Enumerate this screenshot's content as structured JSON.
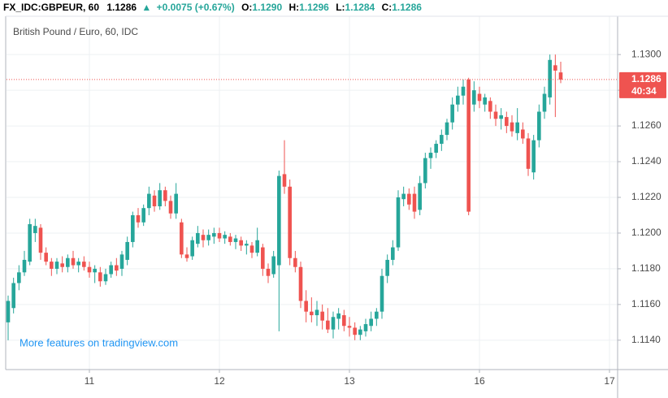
{
  "header": {
    "symbol": "FX_IDC:GBPEUR, 60",
    "price": "1.1286",
    "arrow": "▲",
    "change": "+0.0075 (+0.67%)",
    "ohlc": [
      {
        "label": "O:",
        "value": "1.1290"
      },
      {
        "label": "H:",
        "value": "1.1296"
      },
      {
        "label": "L:",
        "value": "1.1284"
      },
      {
        "label": "C:",
        "value": "1.1286"
      }
    ]
  },
  "chart_data": {
    "type": "candlestick",
    "title": "British Pound / Euro, 60, IDC",
    "watermark": "More features on tradingview.com",
    "up_color": "#26a69a",
    "down_color": "#ef5350",
    "grid": true,
    "last_price": {
      "value": 1.1286,
      "label": "1.1286"
    },
    "countdown": "40:34",
    "xlim": [
      -0.3,
      112.5
    ],
    "xticks": [
      {
        "value": 15,
        "label": "11"
      },
      {
        "value": 39,
        "label": "12"
      },
      {
        "value": 63,
        "label": "13"
      },
      {
        "value": 87,
        "label": "16"
      },
      {
        "value": 111,
        "label": "17"
      }
    ],
    "ylim": [
      1.1124,
      1.1321
    ],
    "yticks": [
      {
        "value": 1.114,
        "label": "1.1140"
      },
      {
        "value": 1.116,
        "label": "1.1160"
      },
      {
        "value": 1.118,
        "label": "1.1180"
      },
      {
        "value": 1.12,
        "label": "1.1200"
      },
      {
        "value": 1.122,
        "label": "1.1220"
      },
      {
        "value": 1.124,
        "label": "1.1240"
      },
      {
        "value": 1.126,
        "label": "1.1260"
      },
      {
        "value": 1.128,
        "label": "1.1280"
      },
      {
        "value": 1.13,
        "label": "1.1300"
      }
    ],
    "candles": [
      [
        1.115,
        1.1165,
        1.114,
        1.1162
      ],
      [
        1.1158,
        1.1175,
        1.1155,
        1.1172
      ],
      [
        1.1172,
        1.1182,
        1.1168,
        1.1178
      ],
      [
        1.1178,
        1.119,
        1.1176,
        1.1185
      ],
      [
        1.1184,
        1.1208,
        1.1182,
        1.1205
      ],
      [
        1.12,
        1.1208,
        1.1195,
        1.1204
      ],
      [
        1.1203,
        1.1205,
        1.1185,
        1.1189
      ],
      [
        1.1189,
        1.1192,
        1.1182,
        1.1184
      ],
      [
        1.1184,
        1.1186,
        1.1176,
        1.118
      ],
      [
        1.118,
        1.1186,
        1.1177,
        1.1184
      ],
      [
        1.1183,
        1.1187,
        1.1178,
        1.1181
      ],
      [
        1.1181,
        1.1188,
        1.1178,
        1.1186
      ],
      [
        1.1186,
        1.119,
        1.118,
        1.1182
      ],
      [
        1.1182,
        1.1186,
        1.1178,
        1.1184
      ],
      [
        1.1184,
        1.1187,
        1.1179,
        1.1181
      ],
      [
        1.1181,
        1.1184,
        1.1175,
        1.1178
      ],
      [
        1.1178,
        1.1182,
        1.1172,
        1.118
      ],
      [
        1.1178,
        1.1181,
        1.117,
        1.1173
      ],
      [
        1.1173,
        1.118,
        1.1171,
        1.1177
      ],
      [
        1.1177,
        1.1184,
        1.1175,
        1.1182
      ],
      [
        1.1182,
        1.1186,
        1.1176,
        1.1179
      ],
      [
        1.118,
        1.119,
        1.1176,
        1.1188
      ],
      [
        1.1185,
        1.1198,
        1.1182,
        1.1195
      ],
      [
        1.1195,
        1.1212,
        1.1192,
        1.121
      ],
      [
        1.121,
        1.1214,
        1.1203,
        1.1206
      ],
      [
        1.1206,
        1.1216,
        1.1204,
        1.1214
      ],
      [
        1.1214,
        1.1226,
        1.121,
        1.1222
      ],
      [
        1.1221,
        1.1224,
        1.1212,
        1.1215
      ],
      [
        1.1215,
        1.1228,
        1.1213,
        1.1224
      ],
      [
        1.1224,
        1.1226,
        1.1215,
        1.1218
      ],
      [
        1.1218,
        1.1221,
        1.1208,
        1.1211
      ],
      [
        1.1211,
        1.1228,
        1.1208,
        1.1222
      ],
      [
        1.1206,
        1.1208,
        1.1186,
        1.1188
      ],
      [
        1.1188,
        1.1192,
        1.1184,
        1.1186
      ],
      [
        1.1187,
        1.1198,
        1.1185,
        1.1196
      ],
      [
        1.1194,
        1.1204,
        1.1192,
        1.12
      ],
      [
        1.1199,
        1.1202,
        1.1192,
        1.1196
      ],
      [
        1.1196,
        1.1202,
        1.1193,
        1.1199
      ],
      [
        1.1198,
        1.1203,
        1.1194,
        1.12
      ],
      [
        1.12,
        1.1203,
        1.1195,
        1.1197
      ],
      [
        1.1197,
        1.1201,
        1.1194,
        1.1199
      ],
      [
        1.1198,
        1.12,
        1.1193,
        1.1195
      ],
      [
        1.1195,
        1.1199,
        1.1191,
        1.1197
      ],
      [
        1.1196,
        1.1198,
        1.119,
        1.1193
      ],
      [
        1.1193,
        1.1196,
        1.1188,
        1.1194
      ],
      [
        1.1193,
        1.1195,
        1.1186,
        1.1189
      ],
      [
        1.1189,
        1.1203,
        1.1187,
        1.1196
      ],
      [
        1.1192,
        1.1194,
        1.1176,
        1.118
      ],
      [
        1.118,
        1.1183,
        1.1172,
        1.1176
      ],
      [
        1.1177,
        1.119,
        1.1175,
        1.1187
      ],
      [
        1.1182,
        1.1235,
        1.1145,
        1.1232
      ],
      [
        1.1233,
        1.1252,
        1.1222,
        1.1226
      ],
      [
        1.1226,
        1.123,
        1.1182,
        1.1186
      ],
      [
        1.1186,
        1.119,
        1.1178,
        1.1181
      ],
      [
        1.1181,
        1.1184,
        1.1158,
        1.1162
      ],
      [
        1.1162,
        1.1168,
        1.115,
        1.1156
      ],
      [
        1.1156,
        1.1164,
        1.115,
        1.1154
      ],
      [
        1.1154,
        1.1162,
        1.1148,
        1.1157
      ],
      [
        1.1156,
        1.116,
        1.1146,
        1.1151
      ],
      [
        1.1151,
        1.1158,
        1.1144,
        1.1146
      ],
      [
        1.1146,
        1.1156,
        1.1141,
        1.1153
      ],
      [
        1.1152,
        1.1158,
        1.1146,
        1.1155
      ],
      [
        1.1154,
        1.1157,
        1.1145,
        1.1148
      ],
      [
        1.1148,
        1.1153,
        1.1142,
        1.1147
      ],
      [
        1.1147,
        1.115,
        1.114,
        1.1143
      ],
      [
        1.1143,
        1.1148,
        1.114,
        1.1146
      ],
      [
        1.1145,
        1.1152,
        1.1142,
        1.1149
      ],
      [
        1.1148,
        1.1156,
        1.1145,
        1.1152
      ],
      [
        1.1152,
        1.1158,
        1.1148,
        1.1156
      ],
      [
        1.1156,
        1.118,
        1.1152,
        1.1176
      ],
      [
        1.1176,
        1.1188,
        1.1172,
        1.1185
      ],
      [
        1.1185,
        1.1196,
        1.1182,
        1.1192
      ],
      [
        1.1192,
        1.1224,
        1.119,
        1.122
      ],
      [
        1.1219,
        1.1226,
        1.1215,
        1.1222
      ],
      [
        1.1222,
        1.1225,
        1.1213,
        1.1216
      ],
      [
        1.1222,
        1.1226,
        1.1208,
        1.1212
      ],
      [
        1.1213,
        1.1232,
        1.121,
        1.1228
      ],
      [
        1.1228,
        1.1245,
        1.1225,
        1.1242
      ],
      [
        1.1242,
        1.1248,
        1.1236,
        1.1245
      ],
      [
        1.1245,
        1.1252,
        1.1242,
        1.125
      ],
      [
        1.125,
        1.1258,
        1.1246,
        1.1255
      ],
      [
        1.1255,
        1.1264,
        1.1252,
        1.1262
      ],
      [
        1.1262,
        1.1276,
        1.1258,
        1.1272
      ],
      [
        1.1272,
        1.1282,
        1.1268,
        1.1277
      ],
      [
        1.1277,
        1.1286,
        1.1272,
        1.1282
      ],
      [
        1.1286,
        1.1287,
        1.121,
        1.1212
      ],
      [
        1.1272,
        1.1285,
        1.1268,
        1.128
      ],
      [
        1.1278,
        1.1282,
        1.127,
        1.1274
      ],
      [
        1.1272,
        1.1278,
        1.1268,
        1.1276
      ],
      [
        1.1274,
        1.1276,
        1.1264,
        1.1268
      ],
      [
        1.1268,
        1.1272,
        1.126,
        1.1264
      ],
      [
        1.1264,
        1.127,
        1.1258,
        1.1266
      ],
      [
        1.1265,
        1.1268,
        1.1256,
        1.126
      ],
      [
        1.1262,
        1.1266,
        1.1254,
        1.1257
      ],
      [
        1.1256,
        1.127,
        1.1252,
        1.1262
      ],
      [
        1.1258,
        1.1262,
        1.125,
        1.1253
      ],
      [
        1.1253,
        1.1256,
        1.1232,
        1.1236
      ],
      [
        1.1234,
        1.1255,
        1.123,
        1.1252
      ],
      [
        1.1252,
        1.1272,
        1.1248,
        1.1268
      ],
      [
        1.1268,
        1.1282,
        1.1264,
        1.1278
      ],
      [
        1.1276,
        1.13,
        1.1272,
        1.1297
      ],
      [
        1.1294,
        1.13,
        1.1265,
        1.1291
      ],
      [
        1.129,
        1.1296,
        1.1284,
        1.1286
      ]
    ]
  }
}
